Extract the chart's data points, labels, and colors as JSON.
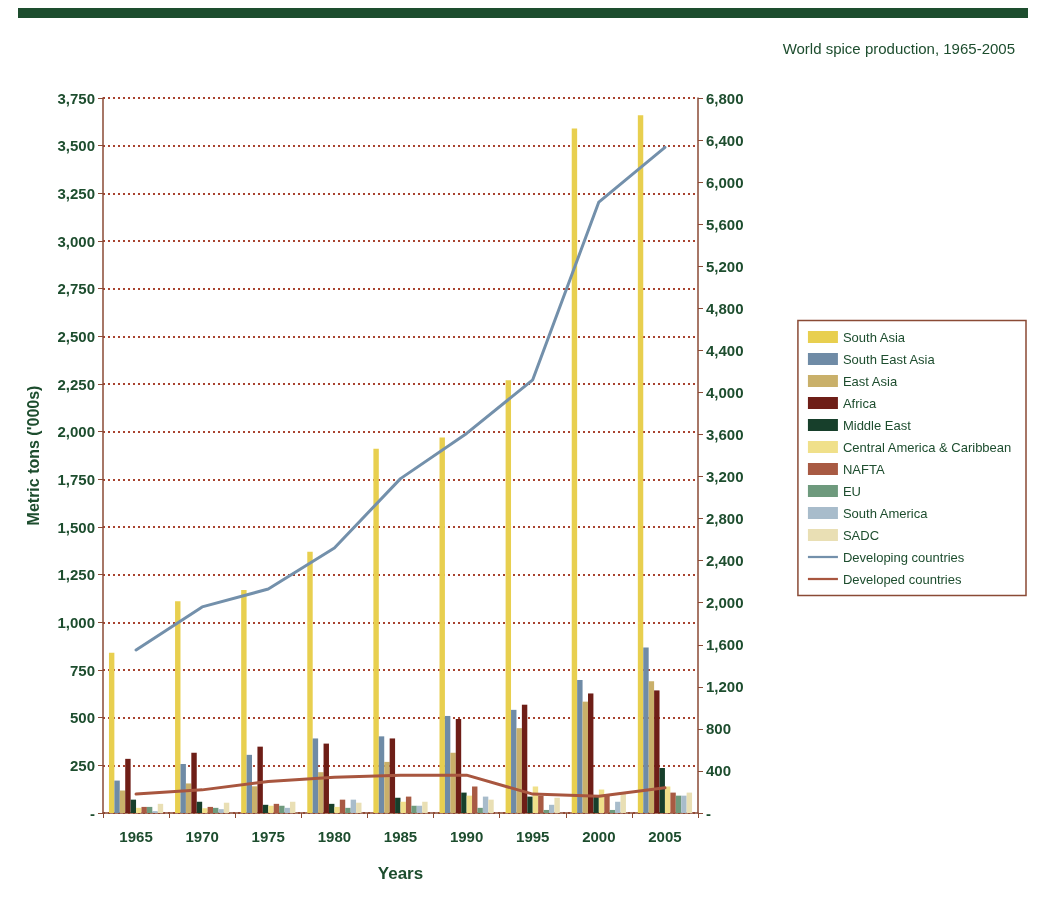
{
  "chart_data": {
    "type": "bar",
    "title": "World spice production, 1965-2005",
    "xlabel": "Years",
    "ylabel": "Metric tons ('000s)",
    "categories": [
      "1965",
      "1970",
      "1975",
      "1980",
      "1985",
      "1990",
      "1995",
      "2000",
      "2005"
    ],
    "series": [
      {
        "name": "South Asia",
        "color": "#e8cf4f",
        "values": [
          840,
          1110,
          1170,
          1370,
          1910,
          1970,
          2270,
          3590,
          3660
        ]
      },
      {
        "name": "South East Asia",
        "color": "#6f8ba6",
        "values": [
          170,
          257,
          305,
          391,
          402,
          509,
          541,
          697,
          868
        ]
      },
      {
        "name": "East Asia",
        "color": "#c9b06a",
        "values": [
          118,
          155,
          140,
          214,
          268,
          316,
          445,
          584,
          691
        ]
      },
      {
        "name": "Africa",
        "color": "#6e1e17",
        "values": [
          284,
          316,
          348,
          364,
          391,
          493,
          568,
          627,
          643
        ]
      },
      {
        "name": "Middle East",
        "color": "#173f2b",
        "values": [
          70,
          59,
          43,
          48,
          80,
          107,
          86,
          86,
          236
        ]
      },
      {
        "name": "Central America & Caribbean",
        "color": "#f0e08a",
        "values": [
          27,
          25,
          38,
          32,
          59,
          91,
          139,
          123,
          139
        ]
      },
      {
        "name": "NAFTA",
        "color": "#a85a43",
        "values": [
          32,
          32,
          48,
          70,
          86,
          139,
          91,
          91,
          107
        ]
      },
      {
        "name": "EU",
        "color": "#6e9a7d",
        "values": [
          32,
          27,
          38,
          27,
          38,
          27,
          16,
          16,
          91
        ]
      },
      {
        "name": "South America",
        "color": "#a8bccb",
        "values": [
          10,
          20,
          27,
          70,
          38,
          86,
          43,
          59,
          91
        ]
      },
      {
        "name": "SADC",
        "color": "#e9dfb4",
        "values": [
          48,
          54,
          59,
          54,
          59,
          70,
          80,
          100,
          107
        ]
      },
      {
        "name": "Developing countries",
        "type": "line",
        "axis": "y2",
        "color": "#7390ab",
        "values": [
          1550,
          1960,
          2130,
          2520,
          3180,
          3610,
          4120,
          5810,
          6330
        ]
      },
      {
        "name": "Developed countries",
        "type": "line",
        "axis": "y2",
        "color": "#a8563f",
        "values": [
          180,
          220,
          300,
          340,
          360,
          360,
          180,
          160,
          240
        ]
      }
    ],
    "ylim": [
      0,
      3750
    ],
    "yticks": [
      {
        "value": 0,
        "label": "-"
      },
      250,
      500,
      750,
      {
        "value": 1000,
        "label": "1,000"
      },
      {
        "value": 1250,
        "label": "1,250"
      },
      {
        "value": 1500,
        "label": "1,500"
      },
      {
        "value": 1750,
        "label": "1,750"
      },
      {
        "value": 2000,
        "label": "2,000"
      },
      {
        "value": 2250,
        "label": "2,250"
      },
      {
        "value": 2500,
        "label": "2,500"
      },
      {
        "value": 2750,
        "label": "2,750"
      },
      {
        "value": 3000,
        "label": "3,000"
      },
      {
        "value": 3250,
        "label": "3,250"
      },
      {
        "value": 3500,
        "label": "3,500"
      },
      {
        "value": 3750,
        "label": "3,750"
      }
    ],
    "y2lim": [
      0,
      6800
    ],
    "y2ticks": [
      {
        "value": 0,
        "label": "-"
      },
      400,
      800,
      {
        "value": 1200,
        "label": "1,200"
      },
      {
        "value": 1600,
        "label": "1,600"
      },
      {
        "value": 2000,
        "label": "2,000"
      },
      {
        "value": 2400,
        "label": "2,400"
      },
      {
        "value": 2800,
        "label": "2,800"
      },
      {
        "value": 3200,
        "label": "3,200"
      },
      {
        "value": 3600,
        "label": "3,600"
      },
      {
        "value": 4000,
        "label": "4,000"
      },
      {
        "value": 4400,
        "label": "4,400"
      },
      {
        "value": 4800,
        "label": "4,800"
      },
      {
        "value": 5200,
        "label": "5,200"
      },
      {
        "value": 5600,
        "label": "5,600"
      },
      {
        "value": 6000,
        "label": "6,000"
      },
      {
        "value": 6400,
        "label": "6,400"
      },
      {
        "value": 6800,
        "label": "6,800"
      }
    ],
    "grid": "y",
    "legend": "right",
    "marker": "none",
    "line_style": "solid"
  }
}
